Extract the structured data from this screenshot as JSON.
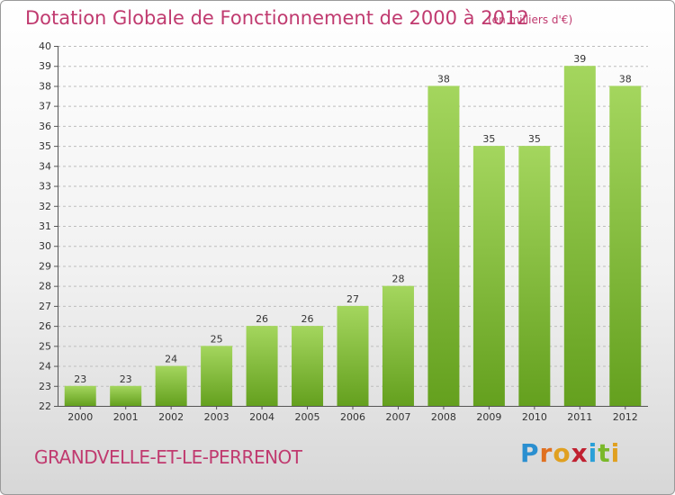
{
  "header": {
    "title": "Dotation Globale de Fonctionnement de 2000 à 2012",
    "unit": "(en milliers d'€)"
  },
  "footer": {
    "commune": "GRANDVELLE-ET-LE-PERRENOT",
    "logo": "Proxiti"
  },
  "colors": {
    "title": "#c03a6f",
    "bar_light": "#a4d65e",
    "bar_dark": "#64a01e"
  },
  "chart_data": {
    "type": "bar",
    "title": "Dotation Globale de Fonctionnement de 2000 à 2012",
    "subtitle": "(en milliers d'€)",
    "categories": [
      "2000",
      "2001",
      "2002",
      "2003",
      "2004",
      "2005",
      "2006",
      "2007",
      "2008",
      "2009",
      "2010",
      "2011",
      "2012"
    ],
    "values": [
      23,
      23,
      24,
      25,
      26,
      26,
      27,
      28,
      38,
      35,
      35,
      39,
      38
    ],
    "ylim": [
      22,
      40
    ],
    "yticks": [
      22,
      23,
      24,
      25,
      26,
      27,
      28,
      29,
      30,
      31,
      32,
      33,
      34,
      35,
      36,
      37,
      38,
      39,
      40
    ],
    "grid": true,
    "legend": "none"
  }
}
